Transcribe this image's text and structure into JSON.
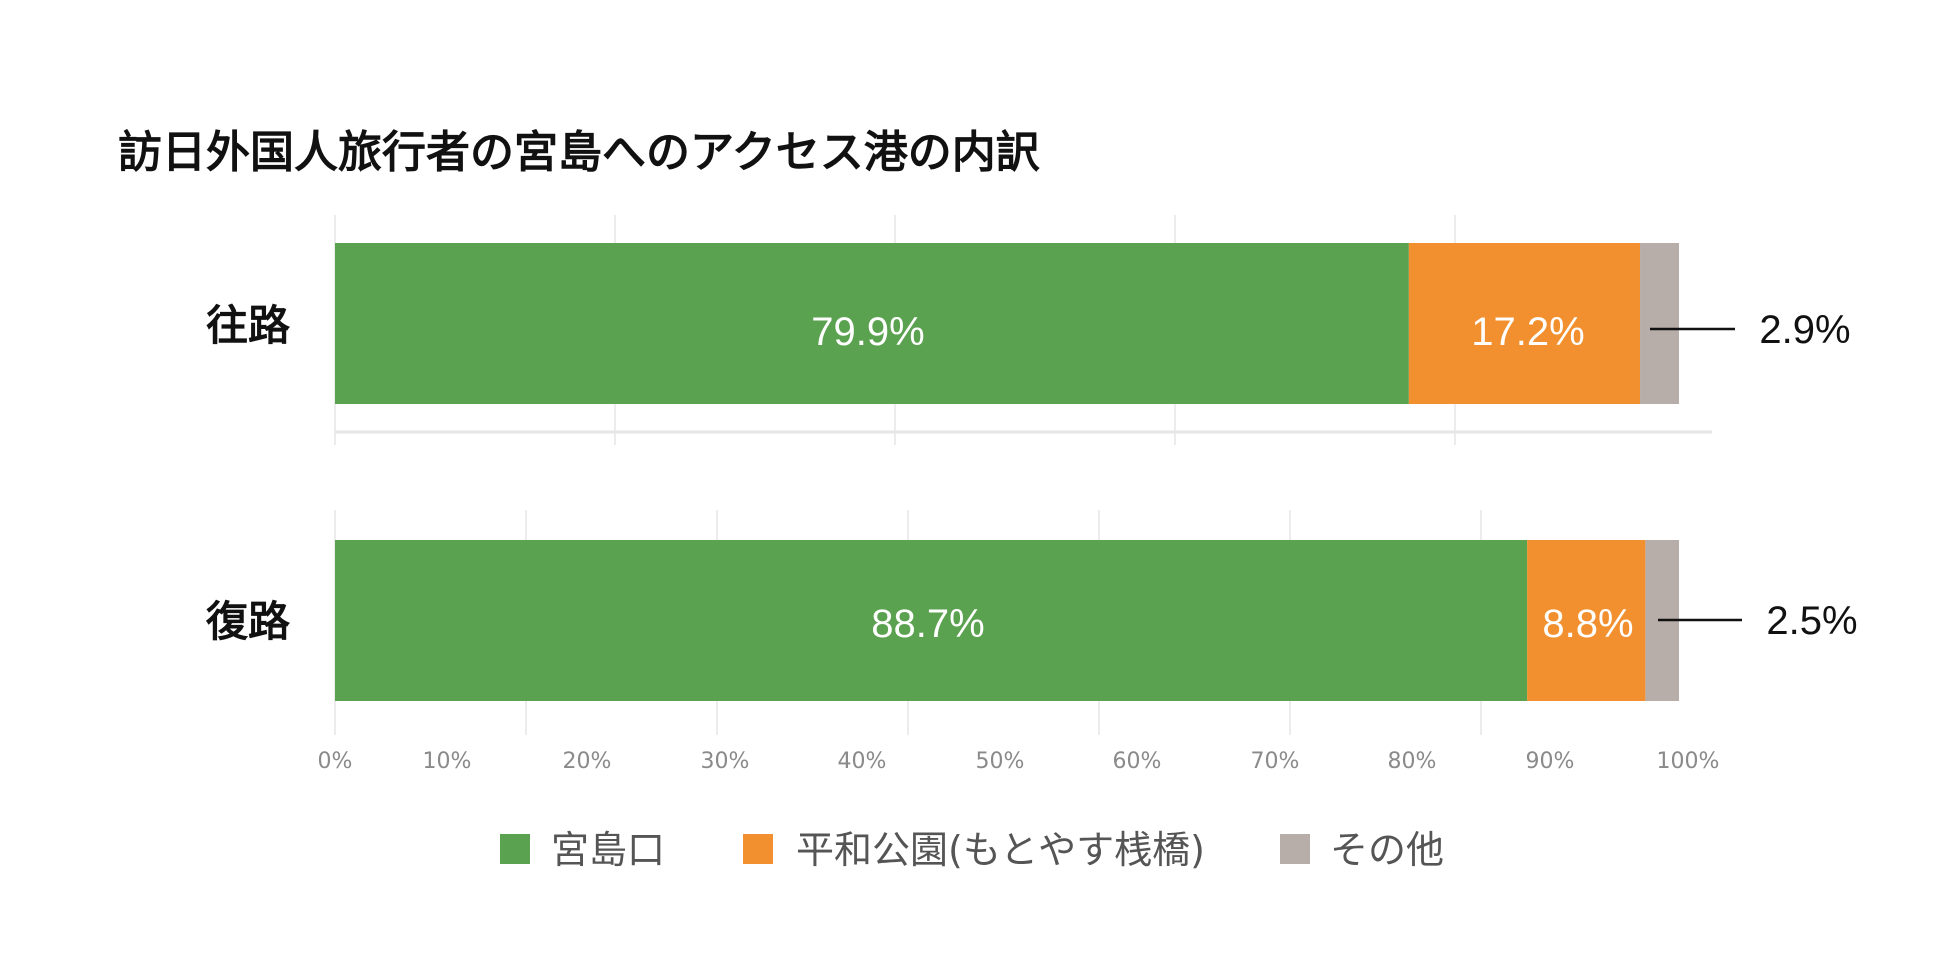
{
  "chart_data": {
    "type": "bar",
    "orientation": "horizontal",
    "stacked": true,
    "title": "訪日外国人旅行者の宮島へのアクセス港の内訳",
    "categories": [
      "往路",
      "復路"
    ],
    "series": [
      {
        "name": "宮島口",
        "color": "#5aa24f",
        "values": [
          79.9,
          88.7
        ],
        "labels": [
          "79.9%",
          "88.7%"
        ]
      },
      {
        "name": "平和公園(もとやす桟橋)",
        "color": "#f28f2e",
        "values": [
          17.2,
          8.8
        ],
        "labels": [
          "17.2%",
          "8.8%"
        ]
      },
      {
        "name": "その他",
        "color": "#b8aea9",
        "values": [
          2.9,
          2.5
        ],
        "labels": [
          "2.9%",
          "2.5%"
        ]
      }
    ],
    "xlim": [
      0,
      100
    ],
    "xticks": [
      "0%",
      "10%",
      "20%",
      "30%",
      "40%",
      "50%",
      "60%",
      "70%",
      "80%",
      "90%",
      "100%"
    ],
    "grid": true,
    "legend_position": "bottom"
  }
}
